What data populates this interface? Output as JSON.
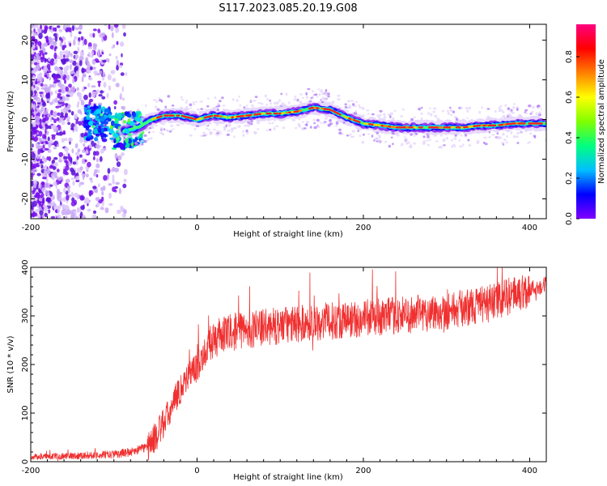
{
  "title": "S117.2023.085.20.19.G08",
  "chart_data": [
    {
      "type": "heatmap",
      "title": "S117.2023.085.20.19.G08",
      "xlabel": "Height of straight line (km)",
      "ylabel": "Frequency (Hz)",
      "xlim": [
        -200,
        420
      ],
      "ylim": [
        -25,
        24
      ],
      "x_ticks": [
        -200,
        0,
        200,
        400
      ],
      "y_ticks": [
        -20,
        -10,
        0,
        10,
        20
      ],
      "colorbar": {
        "label": "Normalized spectral amplitude",
        "range": [
          0,
          1
        ],
        "ticks": [
          "0.0",
          "0.2",
          "0.4",
          "0.6",
          "0.8"
        ],
        "colormap": [
          "#ffffff",
          "#7f00ff",
          "#0000ff",
          "#00bfff",
          "#00ff80",
          "#80ff00",
          "#ffff00",
          "#ff8000",
          "#ff0000",
          "#ff0080"
        ]
      },
      "ridge": {
        "height_km": [
          -90,
          -70,
          -55,
          -40,
          -20,
          0,
          20,
          40,
          60,
          80,
          100,
          120,
          140,
          160,
          180,
          200,
          220,
          240,
          260,
          280,
          300,
          320,
          340,
          360,
          380,
          400,
          420
        ],
        "frequency_hz": [
          -3,
          -2,
          0,
          1,
          1,
          0,
          1,
          0.5,
          1,
          1.5,
          1.5,
          2,
          3,
          2.5,
          0.5,
          -1,
          -1.5,
          -2,
          -2,
          -2,
          -2,
          -2,
          -1.5,
          -1.5,
          -1,
          -1,
          -1
        ]
      },
      "noise_region_km": [
        -200,
        -100
      ]
    },
    {
      "type": "line",
      "xlabel": "Height of straight line (km)",
      "ylabel": "SNR (10 * v/v)",
      "xlim": [
        -200,
        420
      ],
      "ylim": [
        0,
        400
      ],
      "x_ticks": [
        -200,
        0,
        200,
        400
      ],
      "y_ticks": [
        0,
        100,
        200,
        300,
        400
      ],
      "line_color": "#f03030",
      "series": [
        {
          "x": [
            -200,
            -150,
            -100,
            -80,
            -60,
            -50,
            -40,
            -30,
            -20,
            -10,
            0,
            10,
            20,
            30,
            50,
            80,
            100,
            150,
            200,
            250,
            300,
            350,
            400,
            420
          ],
          "y": [
            10,
            12,
            15,
            20,
            30,
            50,
            80,
            110,
            150,
            180,
            195,
            230,
            250,
            260,
            270,
            275,
            280,
            288,
            295,
            302,
            310,
            325,
            355,
            365
          ]
        }
      ]
    }
  ]
}
